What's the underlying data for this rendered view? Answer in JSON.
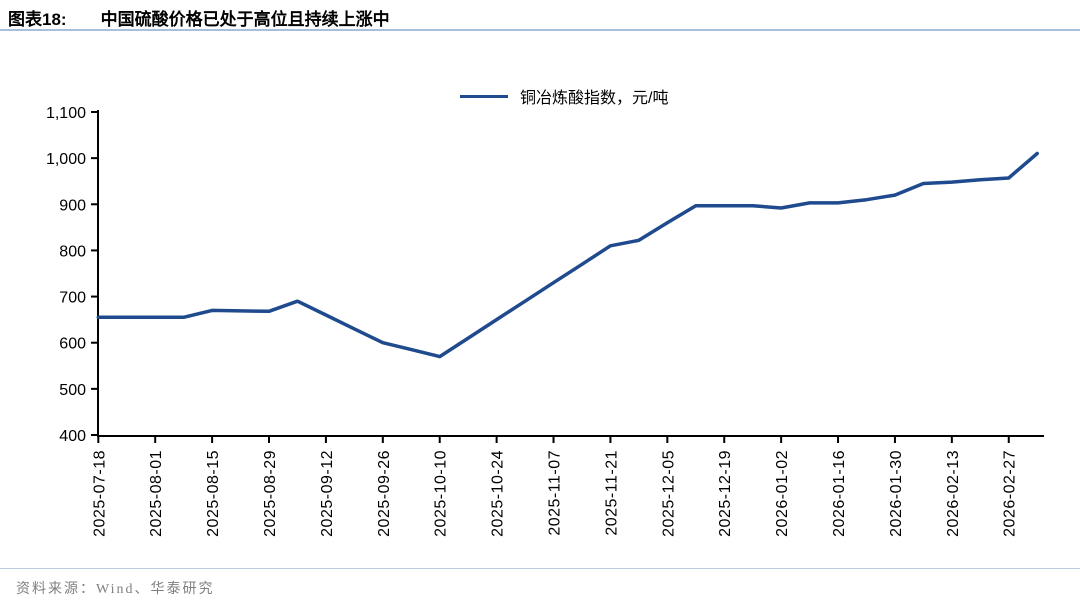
{
  "header": {
    "figure_label": "图表18:",
    "title": "中国硫酸价格已处于高位且持续上涨中"
  },
  "legend": {
    "label": "铜冶炼酸指数，元/吨"
  },
  "footer": {
    "source": "资料来源：Wind、华泰研究"
  },
  "colors": {
    "line": "#1F4B8E",
    "axis": "#000000",
    "title_rule": "#A9BED8",
    "footer_rule": "#B9CADE",
    "footer_text": "#808080"
  },
  "chart_data": {
    "type": "line",
    "title": "中国硫酸价格已处于高位且持续上涨中",
    "xlabel": "",
    "ylabel": "",
    "ylim": [
      400,
      1100
    ],
    "ytick_step": 100,
    "ytick_labels": [
      "400",
      "500",
      "600",
      "700",
      "800",
      "900",
      "1,000",
      "1,100"
    ],
    "grid": false,
    "legend_position": "top-center",
    "x": [
      "2025-07-18",
      "2025-07-25",
      "2025-08-01",
      "2025-08-08",
      "2025-08-15",
      "2025-08-22",
      "2025-08-29",
      "2025-09-05",
      "2025-09-12",
      "2025-09-19",
      "2025-09-26",
      "2025-10-03",
      "2025-10-10",
      "2025-10-17",
      "2025-10-24",
      "2025-10-31",
      "2025-11-07",
      "2025-11-14",
      "2025-11-21",
      "2025-11-28",
      "2025-12-05",
      "2025-12-12",
      "2025-12-19",
      "2025-12-26",
      "2026-01-02",
      "2026-01-09",
      "2026-01-16",
      "2026-01-23",
      "2026-01-30",
      "2026-02-06",
      "2026-02-13",
      "2026-02-20",
      "2026-02-27",
      "2026-03-06"
    ],
    "xtick_labels": [
      "2025-07-18",
      "2025-08-01",
      "2025-08-15",
      "2025-08-29",
      "2025-09-12",
      "2025-09-26",
      "2025-10-10",
      "2025-10-24",
      "2025-11-07",
      "2025-11-21",
      "2025-12-05",
      "2025-12-19",
      "2026-01-02",
      "2026-01-16",
      "2026-01-30",
      "2026-02-13",
      "2026-02-27"
    ],
    "series": [
      {
        "name": "铜冶炼酸指数，元/吨",
        "color": "#1F4B8E",
        "values": [
          655,
          655,
          655,
          655,
          670,
          669,
          668,
          690,
          660,
          630,
          600,
          585,
          570,
          610,
          650,
          690,
          730,
          770,
          810,
          822,
          860,
          897,
          897,
          897,
          892,
          903,
          903,
          910,
          920,
          945,
          948,
          953,
          957,
          1010
        ]
      }
    ]
  }
}
